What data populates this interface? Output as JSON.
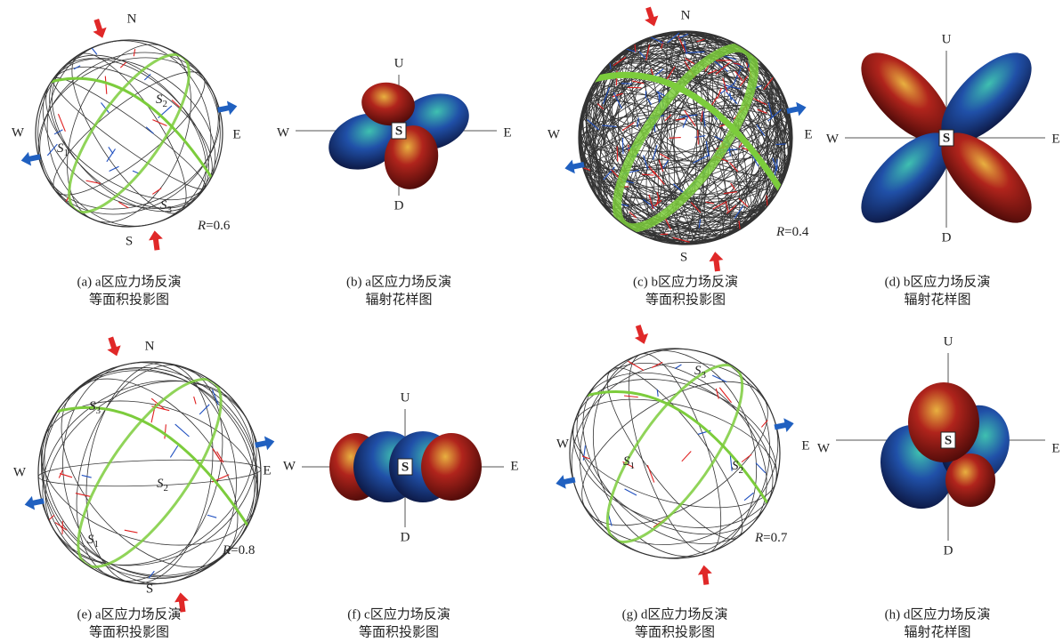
{
  "panels": [
    {
      "type": "stereonet",
      "caption": [
        "(a) a区应力场反演",
        "等面积投影图"
      ],
      "directions": {
        "N": "N",
        "S": "S",
        "W": "W",
        "E": "E"
      },
      "stress": [
        {
          "symbol": "S",
          "index": "1"
        },
        {
          "symbol": "S",
          "index": "2"
        },
        {
          "symbol": "S",
          "index": "3"
        }
      ],
      "ratio": {
        "symbol": "R",
        "value": "=0.6"
      }
    },
    {
      "type": "radiation",
      "caption": [
        "(b) a区应力场反演",
        "辐射花样图"
      ],
      "directions": {
        "U": "U",
        "D": "D",
        "W": "W",
        "E": "E"
      },
      "center": "S"
    },
    {
      "type": "stereonet",
      "caption": [
        "(c) b区应力场反演",
        "等面积投影图"
      ],
      "directions": {
        "N": "N",
        "S": "S",
        "W": "W",
        "E": "E"
      },
      "stress": [],
      "ratio": {
        "symbol": "R",
        "value": "=0.4"
      }
    },
    {
      "type": "radiation",
      "caption": [
        "(d) b区应力场反演",
        "辐射花样图"
      ],
      "directions": {
        "U": "U",
        "D": "D",
        "W": "W",
        "E": "E"
      },
      "center": "S"
    },
    {
      "type": "stereonet",
      "caption": [
        "(e) a区应力场反演",
        "等面积投影图"
      ],
      "directions": {
        "N": "N",
        "S": "S",
        "W": "W",
        "E": "E"
      },
      "stress": [
        {
          "symbol": "S",
          "index": "1"
        },
        {
          "symbol": "S",
          "index": "2"
        },
        {
          "symbol": "S",
          "index": "3"
        }
      ],
      "ratio": {
        "symbol": "R",
        "value": "=0.8"
      }
    },
    {
      "type": "radiation",
      "caption": [
        "(f) c区应力场反演",
        "等面积投影图"
      ],
      "directions": {
        "U": "U",
        "D": "D",
        "W": "W",
        "E": "E"
      },
      "center": "S"
    },
    {
      "type": "stereonet",
      "caption": [
        "(g) d区应力场反演",
        "等面积投影图"
      ],
      "directions": {
        "W": "W",
        "E": "E"
      },
      "stress": [
        {
          "symbol": "S",
          "index": "1"
        },
        {
          "symbol": "S",
          "index": "2"
        },
        {
          "symbol": "S",
          "index": "3"
        }
      ],
      "ratio": {
        "symbol": "R",
        "value": "=0.7"
      }
    },
    {
      "type": "radiation",
      "caption": [
        "(h) d区应力场反演",
        "辐射花样图"
      ],
      "directions": {
        "U": "U",
        "D": "D",
        "W": "W",
        "E": "E"
      },
      "center": "S"
    }
  ]
}
